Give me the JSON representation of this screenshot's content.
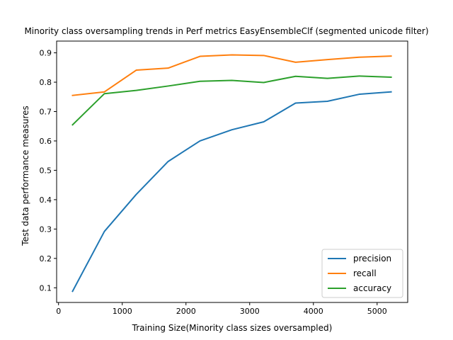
{
  "chart_data": {
    "type": "line",
    "title": "Minority class oversampling trends in Perf metrics EasyEnsembleClf (segmented unicode filter)",
    "xlabel": "Training Size(Minority class sizes oversampled)",
    "ylabel": "Test data performance measures",
    "xlim": [
      -30,
      5480
    ],
    "ylim": [
      0.05,
      0.94
    ],
    "xticks": [
      0,
      1000,
      2000,
      3000,
      4000,
      5000
    ],
    "yticks": [
      0.1,
      0.2,
      0.3,
      0.4,
      0.5,
      0.6,
      0.7,
      0.8,
      0.9
    ],
    "legend_position": "lower-right",
    "x": [
      220,
      720,
      1220,
      1720,
      2220,
      2720,
      3220,
      3720,
      4220,
      4720,
      5220
    ],
    "series": [
      {
        "name": "precision",
        "color": "#1f77b4",
        "values": [
          0.088,
          0.292,
          0.418,
          0.53,
          0.6,
          0.638,
          0.665,
          0.729,
          0.735,
          0.759,
          0.767
        ]
      },
      {
        "name": "recall",
        "color": "#ff7f0e",
        "values": [
          0.755,
          0.767,
          0.841,
          0.848,
          0.888,
          0.893,
          0.891,
          0.868,
          0.877,
          0.885,
          0.889
        ]
      },
      {
        "name": "accuracy",
        "color": "#2ca02c",
        "values": [
          0.655,
          0.761,
          0.772,
          0.787,
          0.803,
          0.806,
          0.799,
          0.82,
          0.813,
          0.821,
          0.817
        ]
      }
    ]
  }
}
